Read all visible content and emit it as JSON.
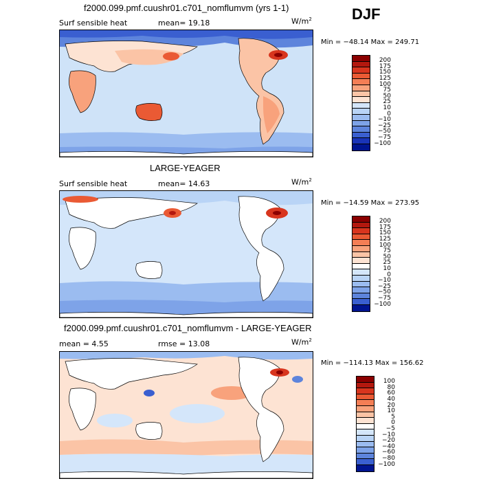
{
  "season": "DJF",
  "panels": [
    {
      "title": "f2000.099.pmf.cuushr01.c701_nomflumvm (yrs 1-1)",
      "left_label": "Surf sensible heat",
      "stat1": "mean=  19.18",
      "stat2": "",
      "units": "W/m",
      "units_exp": "2",
      "minmax": "Min = −48.14  Max = 249.71",
      "levels": [
        "200",
        "175",
        "150",
        "125",
        "100",
        "75",
        "50",
        "25",
        "10",
        "0",
        "−10",
        "−25",
        "−50",
        "−75",
        "−100"
      ],
      "colors": [
        "#8b0000",
        "#b3180e",
        "#d8351e",
        "#ea5a34",
        "#f47e55",
        "#f8a27c",
        "#fbc4a6",
        "#fde3d3",
        "#d4e6fa",
        "#b9d4f6",
        "#9bbcf0",
        "#7ea3e8",
        "#5d84dc",
        "#3a5fd0",
        "#1a34b8",
        "#001490"
      ]
    },
    {
      "title": "LARGE-YEAGER",
      "left_label": "Surf sensible heat",
      "stat1": "mean=  14.63",
      "stat2": "",
      "units": "W/m",
      "units_exp": "2",
      "minmax": "Min = −14.59  Max = 273.95",
      "levels": [
        "200",
        "175",
        "150",
        "125",
        "100",
        "75",
        "50",
        "25",
        "10",
        "0",
        "−10",
        "−25",
        "−50",
        "−75",
        "−100"
      ],
      "colors": [
        "#8b0000",
        "#b3180e",
        "#d8351e",
        "#ea5a34",
        "#f47e55",
        "#f8a27c",
        "#fbc4a6",
        "#fde3d3",
        "#ffffff",
        "#d4e6fa",
        "#b9d4f6",
        "#9bbcf0",
        "#7ea3e8",
        "#5d84dc",
        "#3a5fd0",
        "#001490"
      ]
    },
    {
      "title": "f2000.099.pmf.cuushr01.c701_nomflumvm - LARGE-YEAGER",
      "left_label": "mean =   4.55",
      "stat1": "rmse =  13.08",
      "stat2": "",
      "units": "W/m",
      "units_exp": "2",
      "minmax": "Min = −114.13  Max = 156.62",
      "levels": [
        "100",
        "80",
        "60",
        "40",
        "20",
        "10",
        "5",
        "0",
        "−5",
        "−10",
        "−20",
        "−40",
        "−60",
        "−80",
        "−100"
      ],
      "colors": [
        "#8b0000",
        "#b3180e",
        "#d8351e",
        "#ea5a34",
        "#f47e55",
        "#f8a27c",
        "#fbc4a6",
        "#fde3d3",
        "#ffffff",
        "#d4e6fa",
        "#b9d4f6",
        "#9bbcf0",
        "#7ea3e8",
        "#5d84dc",
        "#3a5fd0",
        "#001490"
      ]
    }
  ],
  "chart_data": [
    {
      "type": "heatmap",
      "title": "f2000.099.pmf.cuushr01.c701_nomflumvm (yrs 1-1)",
      "variable": "Surf sensible heat",
      "mean": 19.18,
      "min": -48.14,
      "max": 249.71,
      "contour_levels": [
        200,
        175,
        150,
        125,
        100,
        75,
        50,
        25,
        10,
        0,
        -10,
        -25,
        -50,
        -75,
        -100
      ]
    },
    {
      "type": "heatmap",
      "title": "LARGE-YEAGER",
      "variable": "Surf sensible heat",
      "mean": 14.63,
      "min": -14.59,
      "max": 273.95,
      "contour_levels": [
        200,
        175,
        150,
        125,
        100,
        75,
        50,
        25,
        10,
        0,
        -10,
        -25,
        -50,
        -75,
        -100
      ]
    },
    {
      "type": "heatmap",
      "title": "f2000.099.pmf.cuushr01.c701_nomflumvm - LARGE-YEAGER",
      "mean": 4.55,
      "rmse": 13.08,
      "min": -114.13,
      "max": 156.62,
      "contour_levels": [
        100,
        80,
        60,
        40,
        20,
        10,
        5,
        0,
        -5,
        -10,
        -20,
        -40,
        -60,
        -80,
        -100
      ]
    }
  ]
}
